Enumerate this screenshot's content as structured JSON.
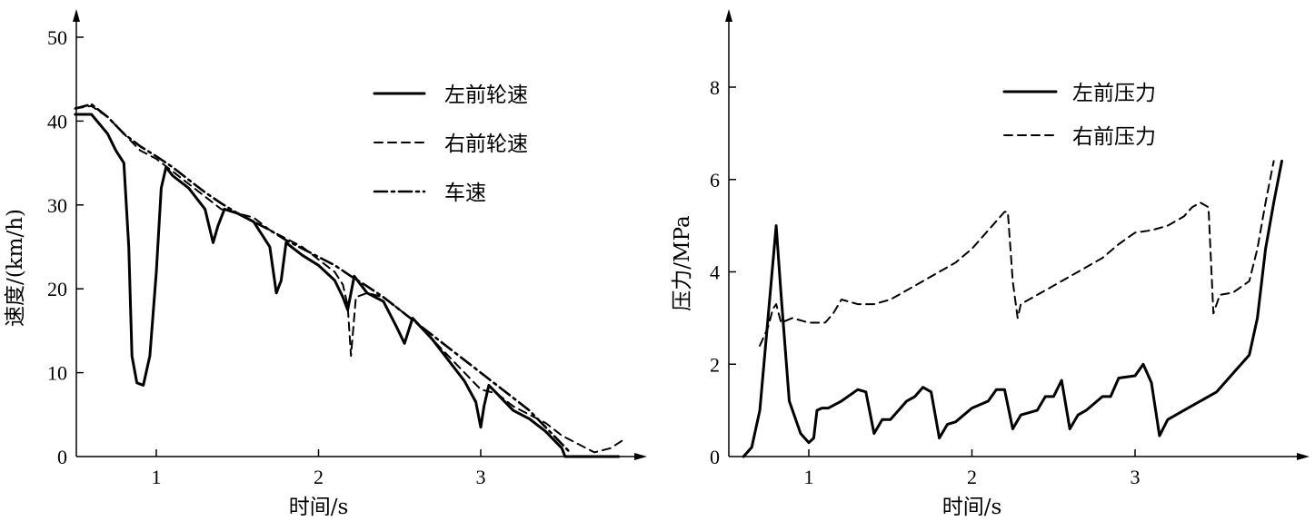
{
  "chart_data": [
    {
      "type": "line",
      "xlabel": "时间/s",
      "ylabel": "速度/(km/h)",
      "xticks": [
        1,
        2,
        3
      ],
      "yticks": [
        0,
        10,
        20,
        30,
        40,
        50
      ],
      "xlim": [
        0.5,
        3.95
      ],
      "ylim": [
        0,
        52
      ],
      "legend_position": "top-right",
      "series": [
        {
          "name": "左前轮速",
          "style": "solid",
          "x": [
            0.5,
            0.6,
            0.7,
            0.75,
            0.8,
            0.83,
            0.85,
            0.88,
            0.92,
            0.96,
            1.0,
            1.03,
            1.06,
            1.1,
            1.2,
            1.3,
            1.35,
            1.38,
            1.42,
            1.5,
            1.6,
            1.7,
            1.74,
            1.77,
            1.8,
            1.9,
            2.0,
            2.1,
            2.15,
            2.18,
            2.22,
            2.3,
            2.4,
            2.48,
            2.53,
            2.58,
            2.7,
            2.8,
            2.9,
            2.97,
            3.0,
            3.02,
            3.05,
            3.1,
            3.2,
            3.3,
            3.4,
            3.5,
            3.52,
            3.6,
            3.7,
            3.8,
            3.85
          ],
          "y": [
            40.8,
            40.8,
            38.5,
            36.5,
            35.0,
            25.0,
            12.0,
            8.8,
            8.5,
            12.0,
            22.0,
            32.0,
            34.5,
            33.5,
            32.0,
            29.5,
            25.5,
            27.5,
            29.5,
            29.0,
            28.0,
            25.0,
            19.5,
            21.0,
            25.5,
            24.0,
            22.8,
            21.0,
            19.0,
            17.5,
            21.5,
            19.5,
            18.5,
            15.5,
            13.5,
            16.5,
            14.0,
            11.5,
            9.0,
            6.5,
            3.5,
            6.0,
            8.5,
            7.5,
            5.5,
            4.5,
            3.0,
            1.0,
            0.0,
            0.0,
            0.0,
            0.0,
            0.0
          ]
        },
        {
          "name": "右前轮速",
          "style": "dashed",
          "x": [
            0.5,
            0.6,
            0.7,
            0.8,
            0.9,
            1.0,
            1.1,
            1.2,
            1.3,
            1.4,
            1.5,
            1.6,
            1.7,
            1.8,
            1.9,
            2.0,
            2.1,
            2.15,
            2.18,
            2.2,
            2.23,
            2.3,
            2.4,
            2.5,
            2.6,
            2.7,
            2.8,
            2.9,
            3.0,
            3.1,
            3.2,
            3.3,
            3.4,
            3.5,
            3.6,
            3.7,
            3.8,
            3.88
          ],
          "y": [
            41.5,
            41.8,
            40.5,
            38.5,
            36.5,
            35.5,
            34.0,
            32.5,
            31.0,
            29.5,
            29.0,
            28.5,
            27.0,
            26.0,
            25.0,
            23.5,
            22.0,
            20.5,
            18.0,
            12.0,
            19.0,
            19.5,
            19.0,
            17.5,
            16.0,
            14.0,
            12.0,
            10.0,
            8.0,
            7.5,
            6.0,
            5.0,
            4.0,
            2.5,
            1.5,
            0.5,
            1.0,
            2.0
          ]
        },
        {
          "name": "车速",
          "style": "dashdot",
          "x": [
            0.5,
            0.6,
            0.7,
            0.8,
            0.9,
            1.0,
            1.1,
            1.2,
            1.3,
            1.4,
            1.5,
            1.6,
            1.7,
            1.8,
            1.9,
            2.0,
            2.1,
            2.2,
            2.3,
            2.4,
            2.5,
            2.6,
            2.7,
            2.8,
            2.9,
            3.0,
            3.1,
            3.2,
            3.3,
            3.4,
            3.5,
            3.55
          ],
          "y": [
            41.5,
            42.0,
            40.5,
            38.5,
            37.0,
            35.8,
            34.5,
            33.0,
            31.5,
            30.2,
            29.0,
            28.0,
            27.0,
            25.8,
            24.8,
            23.8,
            22.8,
            21.5,
            20.3,
            19.0,
            17.5,
            16.0,
            14.5,
            13.0,
            11.5,
            10.0,
            8.5,
            7.0,
            5.5,
            3.5,
            1.5,
            0.5
          ]
        }
      ]
    },
    {
      "type": "line",
      "xlabel": "时间/s",
      "ylabel": "压力/MPa",
      "xticks": [
        1,
        2,
        3
      ],
      "yticks": [
        0,
        2,
        4,
        6,
        8
      ],
      "xlim": [
        0.5,
        3.95
      ],
      "ylim": [
        0,
        9.5
      ],
      "legend_position": "top-right",
      "series": [
        {
          "name": "左前压力",
          "style": "solid",
          "x": [
            0.6,
            0.65,
            0.7,
            0.75,
            0.78,
            0.8,
            0.83,
            0.88,
            0.95,
            1.0,
            1.03,
            1.05,
            1.08,
            1.12,
            1.2,
            1.3,
            1.35,
            1.4,
            1.45,
            1.5,
            1.6,
            1.65,
            1.7,
            1.75,
            1.8,
            1.85,
            1.9,
            2.0,
            2.1,
            2.15,
            2.2,
            2.25,
            2.3,
            2.4,
            2.45,
            2.5,
            2.55,
            2.6,
            2.65,
            2.7,
            2.8,
            2.85,
            2.9,
            3.0,
            3.05,
            3.1,
            3.15,
            3.2,
            3.3,
            3.4,
            3.5,
            3.6,
            3.7,
            3.75,
            3.8,
            3.85,
            3.9
          ],
          "y": [
            0.0,
            0.2,
            1.0,
            3.0,
            4.2,
            5.0,
            3.5,
            1.2,
            0.5,
            0.3,
            0.4,
            1.0,
            1.05,
            1.05,
            1.2,
            1.45,
            1.4,
            0.5,
            0.8,
            0.8,
            1.2,
            1.3,
            1.5,
            1.4,
            0.4,
            0.7,
            0.75,
            1.05,
            1.2,
            1.45,
            1.45,
            0.6,
            0.9,
            1.0,
            1.3,
            1.3,
            1.65,
            0.6,
            0.9,
            1.0,
            1.3,
            1.3,
            1.7,
            1.75,
            2.0,
            1.6,
            0.45,
            0.8,
            1.0,
            1.2,
            1.4,
            1.8,
            2.2,
            3.0,
            4.5,
            5.5,
            6.4
          ]
        },
        {
          "name": "右前压力",
          "style": "dashed",
          "x": [
            0.7,
            0.75,
            0.78,
            0.8,
            0.83,
            0.9,
            1.0,
            1.1,
            1.15,
            1.2,
            1.3,
            1.4,
            1.5,
            1.6,
            1.7,
            1.8,
            1.9,
            2.0,
            2.1,
            2.2,
            2.22,
            2.25,
            2.28,
            2.3,
            2.4,
            2.5,
            2.6,
            2.7,
            2.8,
            2.9,
            3.0,
            3.1,
            3.2,
            3.3,
            3.35,
            3.4,
            3.45,
            3.48,
            3.52,
            3.6,
            3.7,
            3.75,
            3.8,
            3.85
          ],
          "y": [
            2.4,
            2.8,
            3.2,
            3.3,
            2.9,
            3.0,
            2.9,
            2.9,
            3.1,
            3.4,
            3.3,
            3.3,
            3.4,
            3.6,
            3.8,
            4.0,
            4.2,
            4.5,
            4.9,
            5.3,
            5.3,
            3.8,
            3.0,
            3.3,
            3.5,
            3.7,
            3.9,
            4.1,
            4.3,
            4.6,
            4.85,
            4.9,
            5.0,
            5.2,
            5.4,
            5.5,
            5.4,
            3.1,
            3.5,
            3.55,
            3.8,
            4.5,
            5.5,
            6.4
          ]
        }
      ]
    }
  ]
}
